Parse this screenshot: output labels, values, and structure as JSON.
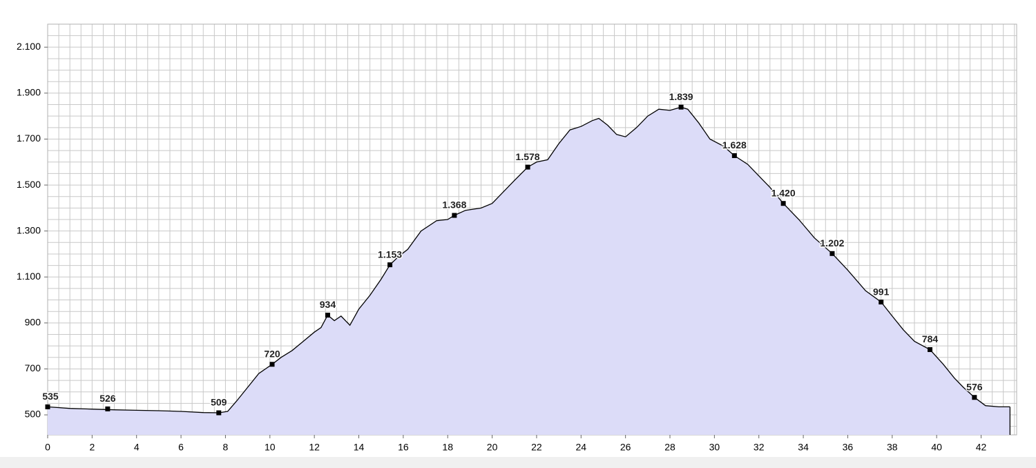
{
  "chart_data": {
    "type": "area",
    "x": [
      0,
      1,
      2,
      3,
      4,
      5,
      6,
      7,
      7.7,
      8.1,
      8.5,
      9,
      9.5,
      10.1,
      10.5,
      11,
      11.5,
      12,
      12.3,
      12.6,
      12.9,
      13.2,
      13.6,
      14,
      14.5,
      15,
      15.4,
      15.8,
      16.2,
      16.8,
      17.5,
      18,
      18.3,
      18.8,
      19.5,
      20,
      20.5,
      21,
      21.6,
      22,
      22.5,
      23,
      23.5,
      24,
      24.5,
      24.8,
      25.2,
      25.6,
      26,
      26.5,
      27,
      27.5,
      28,
      28.5,
      28.8,
      29.3,
      29.8,
      30.4,
      30.9,
      31.5,
      32,
      32.5,
      33.1,
      33.8,
      34.5,
      35.3,
      36,
      36.8,
      37.5,
      38,
      38.5,
      39,
      39.7,
      40.3,
      40.8,
      41.2,
      41.7,
      42.2,
      42.8,
      43.3
    ],
    "values": [
      535,
      528,
      525,
      522,
      520,
      518,
      515,
      510,
      509,
      515,
      560,
      620,
      680,
      720,
      750,
      780,
      820,
      860,
      880,
      934,
      910,
      930,
      890,
      960,
      1020,
      1090,
      1153,
      1190,
      1220,
      1300,
      1345,
      1350,
      1368,
      1390,
      1400,
      1420,
      1470,
      1520,
      1578,
      1600,
      1610,
      1680,
      1740,
      1755,
      1780,
      1790,
      1760,
      1720,
      1710,
      1750,
      1800,
      1830,
      1825,
      1839,
      1830,
      1770,
      1700,
      1670,
      1628,
      1590,
      1540,
      1490,
      1420,
      1350,
      1270,
      1202,
      1130,
      1040,
      991,
      930,
      870,
      820,
      784,
      720,
      660,
      620,
      576,
      540,
      535,
      535
    ],
    "color": "#dcdcf8",
    "line_color": "#000000",
    "annotations": {
      "x": [
        0,
        2.7,
        7.7,
        10.1,
        12.6,
        15.4,
        18.3,
        21.6,
        28.5,
        30.9,
        33.1,
        35.3,
        37.5,
        39.7,
        41.7
      ],
      "values": [
        535,
        526,
        509,
        720,
        934,
        1153,
        1368,
        1578,
        1839,
        1628,
        1420,
        1202,
        991,
        784,
        576
      ],
      "value_labels": [
        "535",
        "526",
        "509",
        "720",
        "934",
        "1.153",
        "1.368",
        "1.578",
        "1.839",
        "1.628",
        "1.420",
        "1.202",
        "991",
        "784",
        "576"
      ]
    },
    "xlim": [
      0,
      43.6
    ],
    "ylim": [
      413,
      2200
    ],
    "xticks": [
      0,
      2,
      4,
      6,
      8,
      10,
      12,
      14,
      16,
      18,
      20,
      22,
      24,
      26,
      28,
      30,
      32,
      34,
      36,
      38,
      40,
      42
    ],
    "yticks": [
      500,
      700,
      900,
      {
        "value": 1100,
        "label": "1.100"
      },
      {
        "value": 1300,
        "label": "1.300"
      },
      {
        "value": 1500,
        "label": "1.500"
      },
      {
        "value": 1700,
        "label": "1.700"
      },
      {
        "value": 1900,
        "label": "1.900"
      },
      {
        "value": 2100,
        "label": "2.100"
      }
    ],
    "grid": {
      "x_step": 0.5,
      "y_step": 50
    }
  }
}
